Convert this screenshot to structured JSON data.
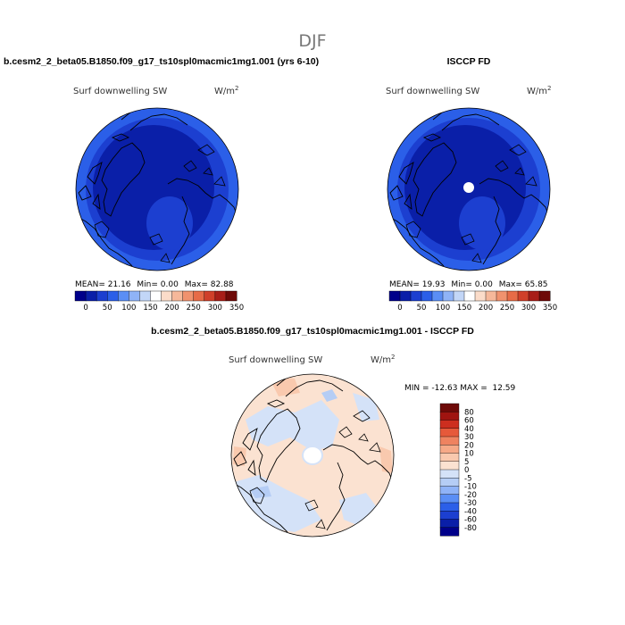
{
  "figure_title": "DJF",
  "colors": {
    "abs_scale": [
      "#00008a",
      "#0a1fa8",
      "#1c3fd0",
      "#2b5fe8",
      "#5a8ef5",
      "#8fb3f7",
      "#c2d6f7",
      "#ffffff",
      "#fbdcc9",
      "#f6b89a",
      "#f0926e",
      "#e76b47",
      "#d0402a",
      "#a81e18",
      "#6e0a08"
    ],
    "diff_scale": [
      "#00008a",
      "#0a1fa8",
      "#1c3fd0",
      "#2b5fe8",
      "#5a8ef5",
      "#8fb3f7",
      "#b5cdf5",
      "#d4e2f8",
      "#fbe2d1",
      "#f9c9ae",
      "#f6a987",
      "#ef8360",
      "#e6593a",
      "#cd2e1f",
      "#a01410",
      "#6e0a08"
    ],
    "coast": "#000000"
  },
  "chart_data": [
    {
      "type": "heatmap",
      "projection": "polar-stereographic",
      "title": "b.cesm2_2_beta05.B1850.f09_g17_ts10spl0macmic1mg1.001 (yrs 6-10)",
      "variable": "Surf downwelling SW",
      "units_base": "W/m",
      "units_exp": "2",
      "stats": {
        "mean_label": "MEAN=",
        "mean": "21.16",
        "min_label": "Min=",
        "min": "0.00",
        "max_label": "Max=",
        "max": "82.88"
      },
      "colorbar_ticks": [
        "0",
        "50",
        "100",
        "150",
        "200",
        "250",
        "300",
        "350"
      ],
      "range": [
        0,
        350
      ]
    },
    {
      "type": "heatmap",
      "projection": "polar-stereographic",
      "title": "ISCCP FD",
      "variable": "Surf downwelling SW",
      "units_base": "W/m",
      "units_exp": "2",
      "stats": {
        "mean_label": "MEAN=",
        "mean": "19.93",
        "min_label": "Min=",
        "min": "0.00",
        "max_label": "Max=",
        "max": "65.85"
      },
      "colorbar_ticks": [
        "0",
        "50",
        "100",
        "150",
        "200",
        "250",
        "300",
        "350"
      ],
      "range": [
        0,
        350
      ]
    },
    {
      "type": "heatmap",
      "projection": "polar-stereographic",
      "title": "b.cesm2_2_beta05.B1850.f09_g17_ts10spl0macmic1mg1.001 - ISCCP FD",
      "variable": "Surf downwelling SW",
      "units_base": "W/m",
      "units_exp": "2",
      "stats_text": "MIN = -12.63 MAX =  12.59",
      "min": -12.63,
      "max": 12.59,
      "colorbar_ticks": [
        "80",
        "60",
        "40",
        "30",
        "20",
        "10",
        "5",
        "0",
        "-5",
        "-10",
        "-20",
        "-30",
        "-40",
        "-60",
        "-80"
      ]
    }
  ]
}
